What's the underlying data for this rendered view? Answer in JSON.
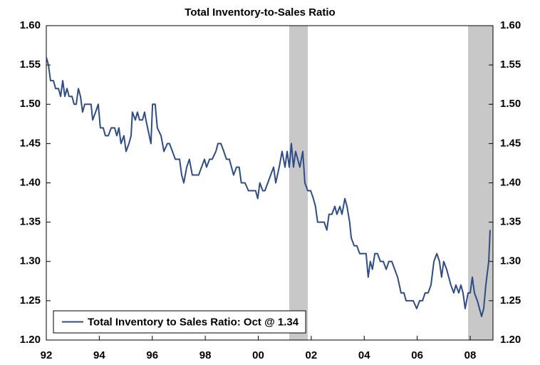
{
  "chart_data": {
    "type": "line",
    "title": "Total Inventory-to-Sales Ratio",
    "x": [
      1992.0,
      1992.08,
      1992.16,
      1992.27,
      1992.35,
      1992.46,
      1992.54,
      1992.62,
      1992.7,
      1992.78,
      1992.86,
      1992.97,
      1993.05,
      1993.13,
      1993.21,
      1993.29,
      1993.37,
      1993.45,
      1993.59,
      1993.69,
      1993.75,
      1993.86,
      1993.96,
      1994.04,
      1994.15,
      1994.23,
      1994.34,
      1994.45,
      1994.58,
      1994.66,
      1994.74,
      1994.82,
      1994.93,
      1995.01,
      1995.12,
      1995.2,
      1995.25,
      1995.36,
      1995.44,
      1995.52,
      1995.63,
      1995.71,
      1995.76,
      1995.95,
      1996.01,
      1996.11,
      1996.19,
      1996.33,
      1996.44,
      1996.57,
      1996.65,
      1996.76,
      1996.87,
      1997.03,
      1997.11,
      1997.19,
      1997.3,
      1997.4,
      1997.51,
      1997.65,
      1997.75,
      1997.86,
      1997.97,
      1998.05,
      1998.16,
      1998.26,
      1998.4,
      1998.48,
      1998.59,
      1998.7,
      1998.8,
      1998.91,
      1998.99,
      1999.07,
      1999.18,
      1999.28,
      1999.36,
      1999.5,
      1999.63,
      1999.79,
      1999.9,
      1999.98,
      2000.06,
      2000.17,
      2000.25,
      2000.36,
      2000.47,
      2000.58,
      2000.66,
      2000.79,
      2000.9,
      2001.01,
      2001.09,
      2001.17,
      2001.25,
      2001.33,
      2001.41,
      2001.49,
      2001.57,
      2001.68,
      2001.76,
      2001.87,
      2001.98,
      2002.08,
      2002.16,
      2002.24,
      2002.35,
      2002.49,
      2002.59,
      2002.67,
      2002.78,
      2002.89,
      2002.97,
      2003.08,
      2003.16,
      2003.27,
      2003.35,
      2003.45,
      2003.51,
      2003.62,
      2003.72,
      2003.83,
      2003.97,
      2004.07,
      2004.15,
      2004.23,
      2004.31,
      2004.4,
      2004.5,
      2004.61,
      2004.72,
      2004.83,
      2004.93,
      2005.04,
      2005.15,
      2005.26,
      2005.39,
      2005.5,
      2005.58,
      2005.71,
      2005.85,
      2005.98,
      2006.09,
      2006.2,
      2006.3,
      2006.41,
      2006.52,
      2006.63,
      2006.74,
      2006.84,
      2006.92,
      2007.0,
      2007.11,
      2007.19,
      2007.27,
      2007.38,
      2007.46,
      2007.57,
      2007.65,
      2007.73,
      2007.81,
      2007.92,
      2008.0,
      2008.08,
      2008.16,
      2008.27,
      2008.35,
      2008.43,
      2008.51,
      2008.59,
      2008.7,
      2008.75
    ],
    "series": [
      {
        "name": "Total Inventory to Sales Ratio: Oct @ 1.34",
        "color": "#2e4d87",
        "values": [
          1.56,
          1.55,
          1.53,
          1.53,
          1.52,
          1.52,
          1.51,
          1.53,
          1.51,
          1.52,
          1.51,
          1.51,
          1.5,
          1.5,
          1.52,
          1.51,
          1.49,
          1.5,
          1.5,
          1.5,
          1.48,
          1.49,
          1.5,
          1.47,
          1.47,
          1.46,
          1.46,
          1.47,
          1.47,
          1.46,
          1.47,
          1.45,
          1.46,
          1.44,
          1.45,
          1.46,
          1.49,
          1.48,
          1.49,
          1.48,
          1.48,
          1.49,
          1.48,
          1.45,
          1.5,
          1.5,
          1.47,
          1.46,
          1.44,
          1.45,
          1.45,
          1.44,
          1.43,
          1.43,
          1.41,
          1.4,
          1.42,
          1.43,
          1.41,
          1.41,
          1.41,
          1.42,
          1.43,
          1.42,
          1.43,
          1.43,
          1.44,
          1.45,
          1.45,
          1.44,
          1.43,
          1.43,
          1.42,
          1.41,
          1.42,
          1.42,
          1.4,
          1.4,
          1.39,
          1.39,
          1.39,
          1.38,
          1.4,
          1.39,
          1.39,
          1.4,
          1.41,
          1.42,
          1.4,
          1.42,
          1.44,
          1.42,
          1.44,
          1.42,
          1.45,
          1.42,
          1.44,
          1.43,
          1.42,
          1.44,
          1.4,
          1.39,
          1.39,
          1.38,
          1.37,
          1.35,
          1.35,
          1.35,
          1.34,
          1.36,
          1.36,
          1.37,
          1.36,
          1.37,
          1.36,
          1.38,
          1.37,
          1.35,
          1.33,
          1.32,
          1.32,
          1.31,
          1.31,
          1.31,
          1.28,
          1.3,
          1.29,
          1.31,
          1.31,
          1.3,
          1.3,
          1.29,
          1.3,
          1.3,
          1.29,
          1.28,
          1.26,
          1.26,
          1.25,
          1.25,
          1.25,
          1.24,
          1.25,
          1.25,
          1.26,
          1.26,
          1.27,
          1.3,
          1.31,
          1.3,
          1.28,
          1.3,
          1.29,
          1.28,
          1.27,
          1.26,
          1.27,
          1.26,
          1.27,
          1.26,
          1.24,
          1.26,
          1.26,
          1.28,
          1.26,
          1.25,
          1.24,
          1.23,
          1.24,
          1.27,
          1.3,
          1.34
        ]
      }
    ],
    "shaded_periods": [
      [
        2001.17,
        2001.87
      ],
      [
        2007.92,
        2008.86
      ]
    ],
    "shade_color": "#c8c8c8",
    "xlim": [
      1992,
      2008.86
    ],
    "xticks": [
      {
        "value": 1992,
        "label": "92"
      },
      {
        "value": 1994,
        "label": "94"
      },
      {
        "value": 1996,
        "label": "96"
      },
      {
        "value": 1998,
        "label": "98"
      },
      {
        "value": 2000,
        "label": "00"
      },
      {
        "value": 2002,
        "label": "02"
      },
      {
        "value": 2004,
        "label": "04"
      },
      {
        "value": 2006,
        "label": "06"
      },
      {
        "value": 2008,
        "label": "08"
      }
    ],
    "ylim": [
      1.2,
      1.6
    ],
    "yticks": [
      {
        "value": 1.2,
        "label": "1.20"
      },
      {
        "value": 1.25,
        "label": "1.25"
      },
      {
        "value": 1.3,
        "label": "1.30"
      },
      {
        "value": 1.35,
        "label": "1.35"
      },
      {
        "value": 1.4,
        "label": "1.40"
      },
      {
        "value": 1.45,
        "label": "1.45"
      },
      {
        "value": 1.5,
        "label": "1.50"
      },
      {
        "value": 1.55,
        "label": "1.55"
      },
      {
        "value": 1.6,
        "label": "1.60"
      }
    ],
    "y2lim": [
      1.2,
      1.6
    ],
    "y2ticks": [
      {
        "value": 1.2,
        "label": "1.20"
      },
      {
        "value": 1.25,
        "label": "1.25"
      },
      {
        "value": 1.3,
        "label": "1.30"
      },
      {
        "value": 1.35,
        "label": "1.35"
      },
      {
        "value": 1.4,
        "label": "1.40"
      },
      {
        "value": 1.45,
        "label": "1.45"
      },
      {
        "value": 1.5,
        "label": "1.50"
      },
      {
        "value": 1.55,
        "label": "1.55"
      },
      {
        "value": 1.6,
        "label": "1.60"
      }
    ],
    "legend": "lower left"
  }
}
